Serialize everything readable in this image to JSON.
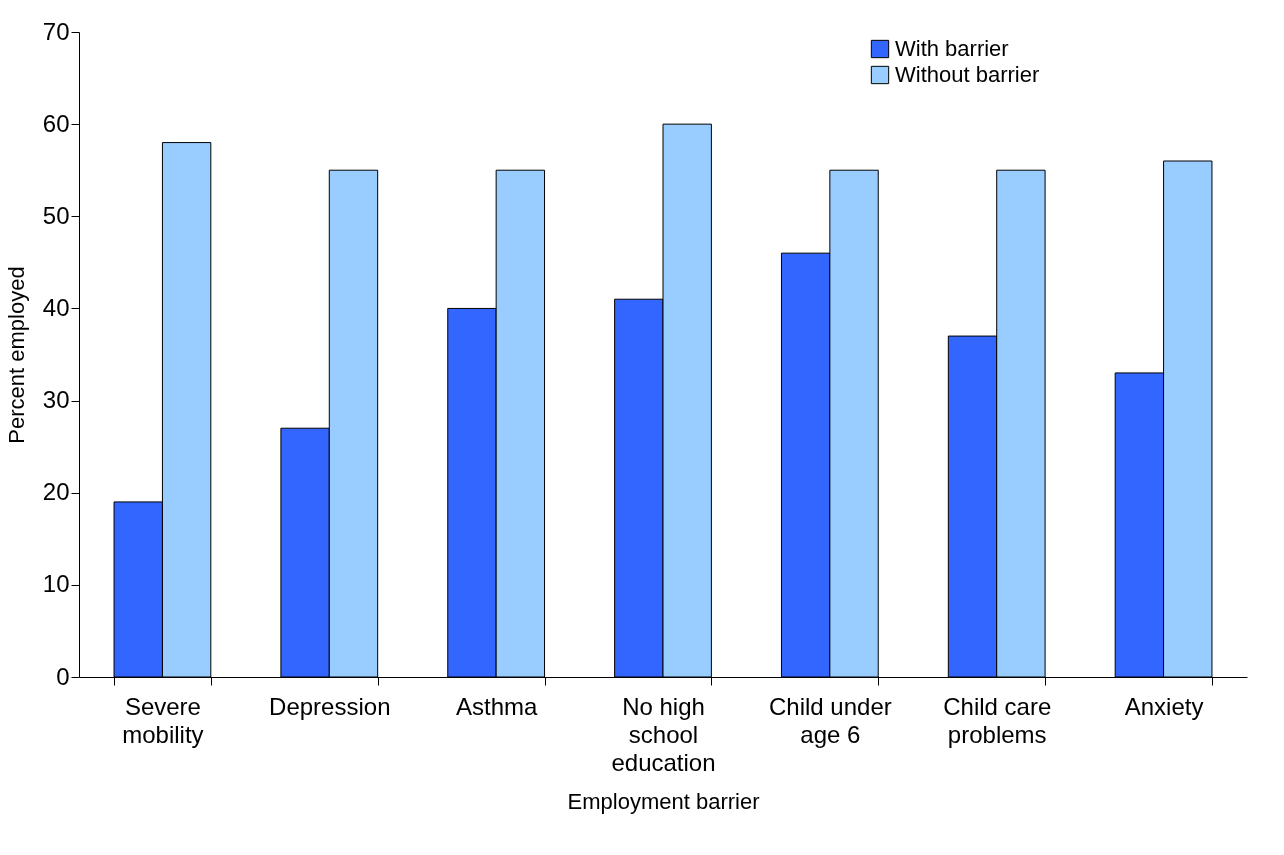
{
  "chart_data": {
    "type": "bar",
    "xlabel": "Employment barrier",
    "ylabel": "Percent employed",
    "categories": [
      "Severe mobility",
      "Depression",
      "Asthma",
      "No high school education",
      "Child under age 6",
      "Child care problems",
      "Anxiety"
    ],
    "series": [
      {
        "name": "With barrier",
        "color": "#3366ff",
        "values": [
          19,
          27,
          40,
          41,
          46,
          37,
          33
        ]
      },
      {
        "name": "Without barrier",
        "color": "#99ccff",
        "values": [
          58,
          55,
          55,
          60,
          55,
          55,
          56
        ]
      }
    ],
    "ylim": [
      0,
      70
    ],
    "yticks": [
      0,
      10,
      20,
      30,
      40,
      50,
      60,
      70
    ],
    "grid": false,
    "legend": "top right"
  }
}
